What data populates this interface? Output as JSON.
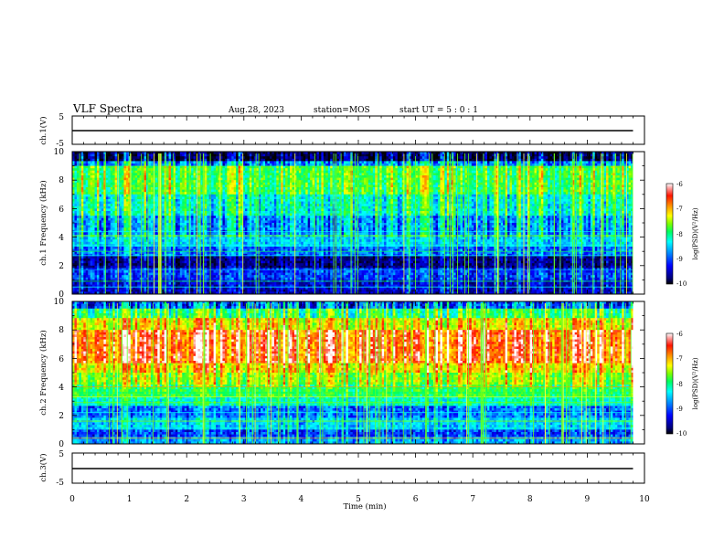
{
  "header": {
    "title": "VLF Spectra",
    "date": "Aug.28, 2023",
    "station": "station=MOS",
    "start": "start UT = 5 : 0 : 1"
  },
  "chart_data": [
    {
      "type": "line",
      "name": "ch1-waveform",
      "ylabel": "ch.1(V)",
      "ylim": [
        -5,
        5
      ],
      "yticks": [
        "5",
        "-5"
      ],
      "xlim": [
        0,
        10
      ],
      "x": [
        0,
        9.8
      ],
      "values": [
        0,
        0
      ]
    },
    {
      "type": "heatmap",
      "name": "ch1-spectrogram",
      "ylabel": "ch.1 Frequency (kHz)",
      "ylim": [
        0,
        10
      ],
      "yticks": [
        "0",
        "2",
        "4",
        "6",
        "8",
        "10"
      ],
      "xlim": [
        0,
        10
      ],
      "data_end_min": 9.8,
      "colorbar": {
        "label": "log(PSD)(V²/Hz)",
        "range": [
          -10,
          -6
        ],
        "ticks": [
          "-6",
          "-7",
          "-8",
          "-9",
          "-10"
        ]
      }
    },
    {
      "type": "heatmap",
      "name": "ch2-spectrogram",
      "ylabel": "ch.2 Frequency (kHz)",
      "ylim": [
        0,
        10
      ],
      "yticks": [
        "0",
        "2",
        "4",
        "6",
        "8",
        "10"
      ],
      "xlim": [
        0,
        10
      ],
      "data_end_min": 9.8,
      "colorbar": {
        "label": "log(PSD)(V²/Hz)",
        "range": [
          -10,
          -6
        ],
        "ticks": [
          "-6",
          "-7",
          "-8",
          "-9",
          "-10"
        ]
      }
    },
    {
      "type": "line",
      "name": "ch3-waveform",
      "ylabel": "ch.3(V)",
      "ylim": [
        -5,
        5
      ],
      "yticks": [
        "5",
        "-5"
      ],
      "xlim": [
        0,
        10
      ],
      "x": [
        0,
        9.8
      ],
      "values": [
        0,
        0
      ]
    }
  ],
  "xaxis": {
    "label": "Time (min)",
    "ticks": [
      "0",
      "1",
      "2",
      "3",
      "4",
      "5",
      "6",
      "7",
      "8",
      "9",
      "10"
    ]
  },
  "colors": {
    "palette": [
      "#000000",
      "#00007a",
      "#0000ff",
      "#0096ff",
      "#00ffff",
      "#00ff60",
      "#7cff00",
      "#ffff00",
      "#ff9000",
      "#ff1400",
      "#ffffff"
    ]
  }
}
